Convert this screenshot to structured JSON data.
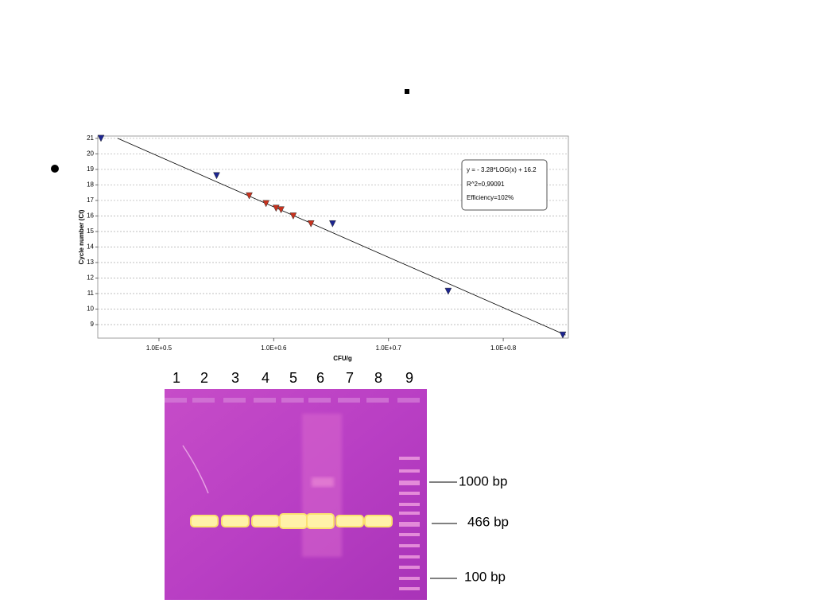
{
  "chart_data": {
    "type": "scatter",
    "x_label": "CFU/g",
    "y_label": "Cycle number (Ct)",
    "annotations": [
      "y = - 3.28*LOG(x) + 16.2",
      "R^2=0,99091",
      "Efficiency=102%"
    ],
    "log_x": true,
    "grid": "y",
    "xlim": [
      2.797,
      7.19
    ],
    "ylim": [
      8.13,
      21.15
    ],
    "xticks": [
      {
        "value": 3.1623,
        "label": "1.0E+0.5"
      },
      {
        "value": 3.9811,
        "label": "1.0E+0.6"
      },
      {
        "value": 5.0119,
        "label": "1.0E+0.7"
      },
      {
        "value": 6.3096,
        "label": "1.0E+0.8"
      }
    ],
    "yticks": [
      9,
      10,
      11,
      12,
      13,
      14,
      15,
      16,
      17,
      18,
      19,
      20,
      21
    ],
    "series": [
      {
        "color": "#1c2590",
        "x": [
          2.815,
          3.55,
          4.48,
          5.65,
          7.11
        ],
        "values": [
          21.0,
          18.6,
          15.5,
          11.15,
          8.33
        ]
      },
      {
        "color": "#c8321e",
        "x": [
          3.79,
          3.92,
          4.0,
          4.04,
          4.14,
          4.29
        ],
        "values": [
          17.3,
          16.8,
          16.5,
          16.4,
          16.0,
          15.5
        ]
      }
    ],
    "trendline": {
      "color": "#000000",
      "x": [
        2.911,
        7.15
      ],
      "values": [
        21.0,
        8.33
      ]
    }
  },
  "gel": {
    "lanes": [
      "1",
      "2",
      "3",
      "4",
      "5",
      "6",
      "7",
      "8",
      "9"
    ],
    "markers": [
      "1000 bp",
      "466 bp",
      "100 bp"
    ]
  }
}
